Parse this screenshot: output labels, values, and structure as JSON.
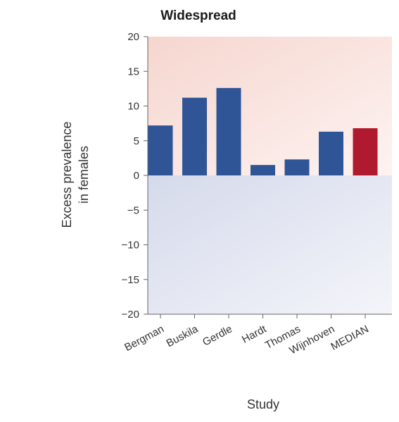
{
  "chart_data": {
    "type": "bar",
    "title": "Widespread",
    "xlabel": "Study",
    "ylabel": [
      "Excess prevalence",
      "in females"
    ],
    "categories": [
      "Bergman",
      "Buskila",
      "Gerdle",
      "Hardt",
      "Thomas",
      "Wijnhoven",
      "MEDIAN"
    ],
    "values": [
      7.2,
      11.2,
      12.6,
      1.5,
      2.3,
      6.3,
      6.8
    ],
    "highlight_category": "MEDIAN",
    "ylim": [
      -20,
      20
    ],
    "yticks": [
      "20",
      "15",
      "10",
      "5",
      "0",
      "−5",
      "−10",
      "−15",
      "−20"
    ],
    "ytick_values": [
      20,
      15,
      10,
      5,
      0,
      -5,
      -10,
      -15,
      -20
    ],
    "grid": false,
    "legend": "none",
    "colors": {
      "bar": "#2f5597",
      "highlight": "#b01a2e",
      "positive_bg_strong": "#f6d6cf",
      "positive_bg_light": "#fdf3f1",
      "negative_bg_strong": "#d5daeb",
      "negative_bg_light": "#f4f5fa",
      "axis": "#666666"
    }
  }
}
